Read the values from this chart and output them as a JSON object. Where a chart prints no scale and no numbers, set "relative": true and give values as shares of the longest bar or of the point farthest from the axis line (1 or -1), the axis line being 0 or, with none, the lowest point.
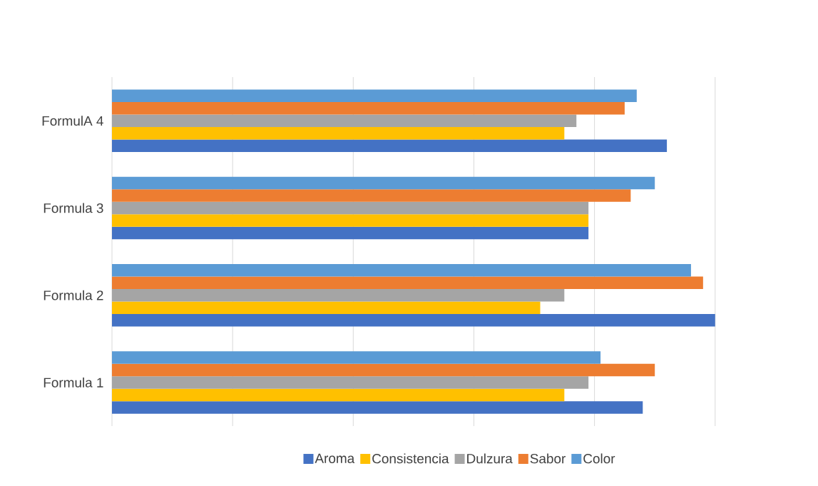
{
  "chart_data": {
    "type": "bar",
    "orientation": "horizontal",
    "relative": true,
    "grid": "x",
    "legend": "bottom",
    "categories": [
      "FormulA 4",
      "Formula 3",
      "Formula 2",
      "Formula 1"
    ],
    "series": [
      {
        "name": "Aroma",
        "color": "#4472c4",
        "values": [
          0.92,
          0.79,
          1.0,
          0.88
        ]
      },
      {
        "name": "Consistencia",
        "color": "#ffc000",
        "values": [
          0.75,
          0.79,
          0.71,
          0.75
        ]
      },
      {
        "name": "Dulzura",
        "color": "#a5a5a5",
        "values": [
          0.77,
          0.79,
          0.75,
          0.79
        ]
      },
      {
        "name": "Sabor",
        "color": "#ed7d31",
        "values": [
          0.85,
          0.86,
          0.98,
          0.9
        ]
      },
      {
        "name": "Color",
        "color": "#5b9bd5",
        "values": [
          0.87,
          0.9,
          0.96,
          0.81
        ]
      }
    ]
  }
}
